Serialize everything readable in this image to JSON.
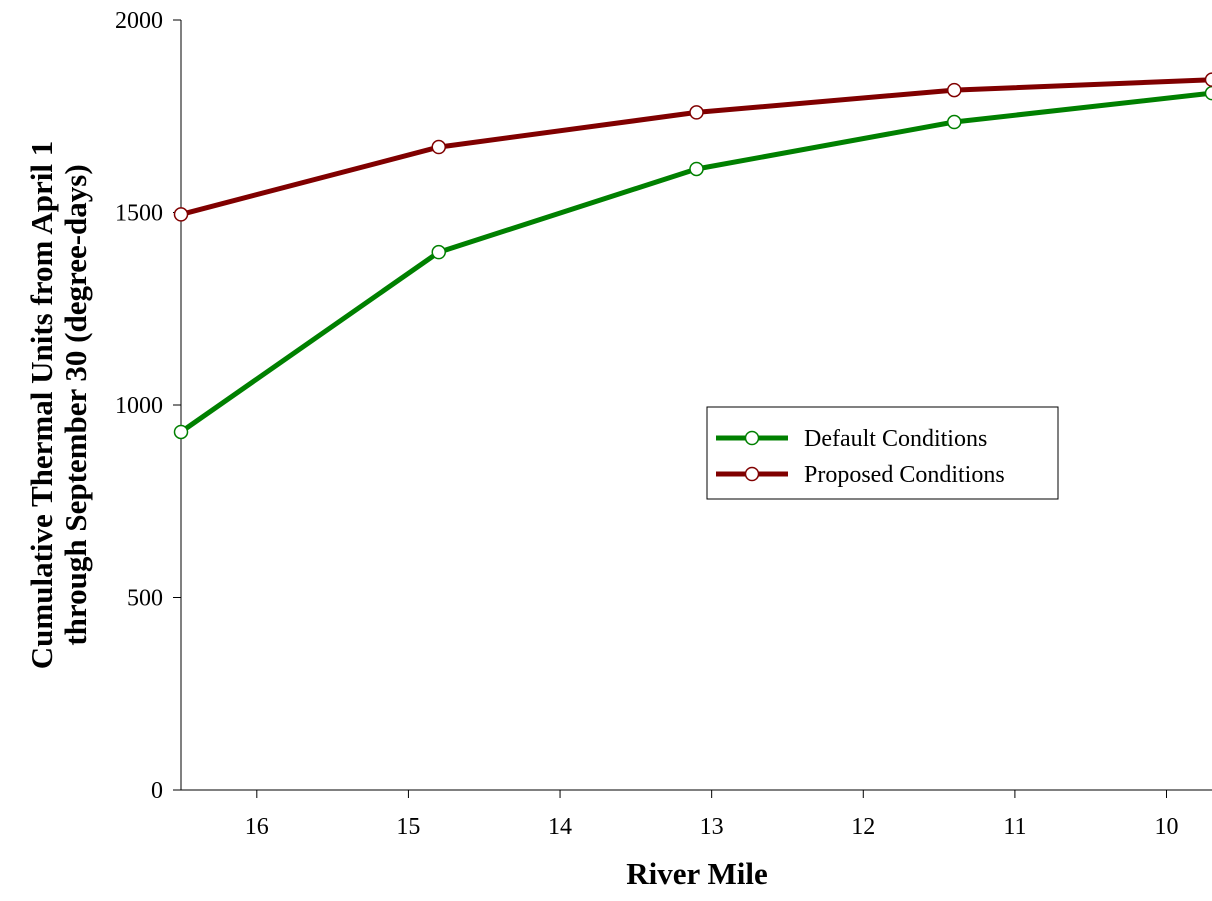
{
  "chart_data": {
    "type": "line",
    "xlabel": "River Mile",
    "ylabel": [
      "Cumulative Thermal Units from April 1",
      "through September 30 (degree-days)"
    ],
    "xlim": [
      16.5,
      9.7
    ],
    "x_reversed": true,
    "ylim": [
      0,
      2000
    ],
    "xticks": [
      16,
      15,
      14,
      13,
      12,
      11,
      10
    ],
    "yticks": [
      0,
      500,
      1000,
      1500,
      2000
    ],
    "grid": false,
    "legend_position": "center-right",
    "series": [
      {
        "name": "Default Conditions",
        "color": "#008000",
        "x": [
          16.5,
          14.8,
          13.1,
          11.4,
          9.7
        ],
        "y": [
          930,
          1397,
          1613,
          1735,
          1810
        ]
      },
      {
        "name": "Proposed Conditions",
        "color": "#800000",
        "x": [
          16.5,
          14.8,
          13.1,
          11.4,
          9.7
        ],
        "y": [
          1495,
          1670,
          1760,
          1818,
          1845
        ]
      }
    ]
  }
}
